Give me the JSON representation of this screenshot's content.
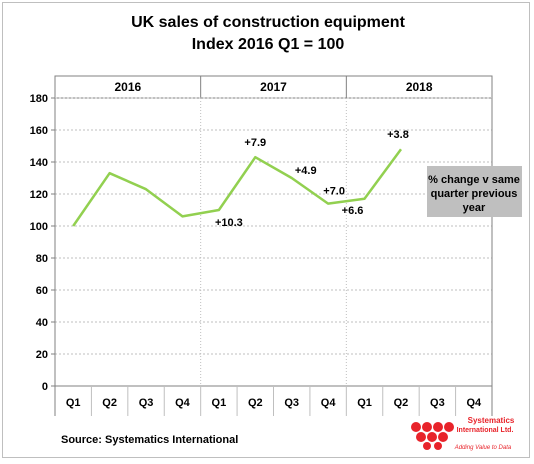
{
  "chart_data": {
    "type": "line",
    "title": "UK sales of construction equipment",
    "subtitle": "Index 2016 Q1 = 100",
    "years": [
      "2016",
      "2017",
      "2018"
    ],
    "categories": [
      "Q1",
      "Q2",
      "Q3",
      "Q4",
      "Q1",
      "Q2",
      "Q3",
      "Q4",
      "Q1",
      "Q2",
      "Q3",
      "Q4"
    ],
    "series": [
      {
        "values": [
          100,
          133,
          123,
          106,
          110,
          143,
          130,
          114,
          117,
          148,
          null,
          null
        ],
        "color": "#92d050"
      }
    ],
    "ylim": [
      0,
      180
    ],
    "yticks": [
      0,
      20,
      40,
      60,
      80,
      100,
      120,
      140,
      160,
      180
    ],
    "annotations": [
      {
        "index": 4,
        "text": "+10.3"
      },
      {
        "index": 5,
        "text": "+7.9"
      },
      {
        "index": 6,
        "text": "+4.9"
      },
      {
        "index": 7,
        "text": "+7.0"
      },
      {
        "index": 8,
        "text": "+6.6"
      },
      {
        "index": 9,
        "text": "+3.8"
      }
    ],
    "note_box": {
      "lines": [
        "% change v same",
        "quarter previous",
        "year"
      ],
      "color": "#bfbfbf"
    },
    "grid": true,
    "colors": {
      "line": "#92d050",
      "grid": "#bfbfbf",
      "axis": "#808080"
    }
  },
  "source": "Source: Systematics International",
  "logo": {
    "line1": "Systematics",
    "line2": "International Ltd.",
    "tagline": "Adding Value to Data",
    "color": "#e8232a"
  }
}
